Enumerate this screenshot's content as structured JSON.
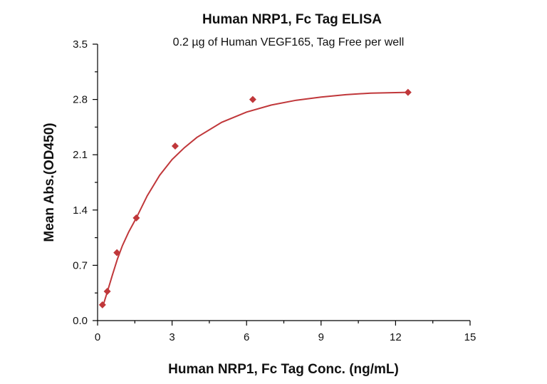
{
  "chart_data": {
    "type": "scatter",
    "title": "Human NRP1, Fc Tag ELISA",
    "subtitle": "0.2 µg of Human VEGF165, Tag Free per well",
    "xlabel": "Human NRP1, Fc Tag Conc. (ng/mL)",
    "ylabel": "Mean Abs.(OD450)",
    "xlim": [
      0,
      15
    ],
    "ylim": [
      0,
      3.5
    ],
    "x_ticks": [
      "0",
      "3",
      "6",
      "9",
      "12",
      "15"
    ],
    "y_ticks": [
      "0.0",
      "0.7",
      "1.4",
      "2.1",
      "2.8",
      "3.5"
    ],
    "grid": false,
    "series": [
      {
        "color": "#C0373A",
        "marker": "diamond",
        "points": [
          {
            "x": 0.195,
            "y": 0.2
          },
          {
            "x": 0.39,
            "y": 0.37
          },
          {
            "x": 0.78,
            "y": 0.86
          },
          {
            "x": 1.56,
            "y": 1.3
          },
          {
            "x": 3.125,
            "y": 2.21
          },
          {
            "x": 6.25,
            "y": 2.8
          },
          {
            "x": 12.5,
            "y": 2.89
          }
        ],
        "fit_curve": [
          {
            "x": 0.2,
            "y": 0.17
          },
          {
            "x": 0.4,
            "y": 0.37
          },
          {
            "x": 0.6,
            "y": 0.58
          },
          {
            "x": 0.8,
            "y": 0.78
          },
          {
            "x": 1.0,
            "y": 0.95
          },
          {
            "x": 1.25,
            "y": 1.12
          },
          {
            "x": 1.56,
            "y": 1.3
          },
          {
            "x": 2.0,
            "y": 1.58
          },
          {
            "x": 2.5,
            "y": 1.84
          },
          {
            "x": 3.0,
            "y": 2.04
          },
          {
            "x": 3.5,
            "y": 2.19
          },
          {
            "x": 4.0,
            "y": 2.32
          },
          {
            "x": 5.0,
            "y": 2.51
          },
          {
            "x": 6.0,
            "y": 2.64
          },
          {
            "x": 7.0,
            "y": 2.73
          },
          {
            "x": 8.0,
            "y": 2.79
          },
          {
            "x": 9.0,
            "y": 2.83
          },
          {
            "x": 10.0,
            "y": 2.86
          },
          {
            "x": 11.0,
            "y": 2.88
          },
          {
            "x": 12.5,
            "y": 2.89
          }
        ]
      }
    ]
  }
}
